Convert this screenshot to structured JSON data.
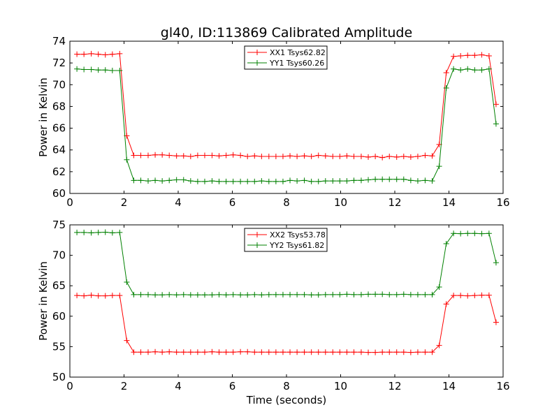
{
  "figure_title": "gl40, ID:113869 Calibrated Amplitude",
  "x_label": "Time (seconds)",
  "colors": {
    "red": "#ff0000",
    "green": "#008000",
    "axes": "#000000"
  },
  "chart_data": [
    {
      "type": "line",
      "title": "gl40, ID:113869 Calibrated Amplitude",
      "xlabel": "",
      "ylabel": "Power in Kelvin",
      "xlim": [
        0,
        16
      ],
      "ylim": [
        60,
        74
      ],
      "xticks": [
        0,
        2,
        4,
        6,
        8,
        10,
        12,
        14,
        16
      ],
      "yticks": [
        60,
        62,
        64,
        66,
        68,
        70,
        72,
        74
      ],
      "grid": false,
      "legend": "top-center",
      "x": [
        0.26,
        0.52,
        0.79,
        1.05,
        1.31,
        1.57,
        1.84,
        2.1,
        2.36,
        2.62,
        2.89,
        3.15,
        3.41,
        3.67,
        3.94,
        4.2,
        4.46,
        4.72,
        4.98,
        5.25,
        5.51,
        5.77,
        6.03,
        6.3,
        6.56,
        6.82,
        7.08,
        7.35,
        7.61,
        7.87,
        8.13,
        8.39,
        8.66,
        8.92,
        9.18,
        9.44,
        9.71,
        9.97,
        10.23,
        10.49,
        10.76,
        11.02,
        11.28,
        11.54,
        11.8,
        12.07,
        12.33,
        12.59,
        12.85,
        13.12,
        13.38,
        13.64,
        13.9,
        14.17,
        14.43,
        14.69,
        14.95,
        15.21,
        15.48,
        15.74
      ],
      "series": [
        {
          "name": "XX1 Tsys62.82",
          "color": "#ff0000",
          "values": [
            72.8,
            72.8,
            72.85,
            72.8,
            72.75,
            72.8,
            72.85,
            65.3,
            63.5,
            63.5,
            63.5,
            63.55,
            63.55,
            63.5,
            63.45,
            63.45,
            63.4,
            63.5,
            63.5,
            63.5,
            63.45,
            63.5,
            63.55,
            63.5,
            63.4,
            63.45,
            63.4,
            63.4,
            63.4,
            63.4,
            63.45,
            63.4,
            63.45,
            63.4,
            63.5,
            63.45,
            63.4,
            63.4,
            63.45,
            63.4,
            63.4,
            63.35,
            63.4,
            63.3,
            63.4,
            63.35,
            63.4,
            63.35,
            63.4,
            63.5,
            63.45,
            64.5,
            71.1,
            72.6,
            72.65,
            72.7,
            72.7,
            72.75,
            72.65,
            68.2
          ]
        },
        {
          "name": "YY1 Tsys60.26",
          "color": "#008000",
          "values": [
            71.45,
            71.4,
            71.4,
            71.35,
            71.35,
            71.3,
            71.3,
            63.1,
            61.2,
            61.2,
            61.15,
            61.2,
            61.15,
            61.2,
            61.25,
            61.25,
            61.15,
            61.1,
            61.1,
            61.15,
            61.1,
            61.1,
            61.1,
            61.1,
            61.1,
            61.1,
            61.15,
            61.1,
            61.1,
            61.1,
            61.2,
            61.15,
            61.2,
            61.1,
            61.1,
            61.15,
            61.15,
            61.15,
            61.15,
            61.2,
            61.2,
            61.25,
            61.3,
            61.3,
            61.3,
            61.3,
            61.3,
            61.2,
            61.15,
            61.2,
            61.15,
            62.5,
            69.7,
            71.45,
            71.35,
            71.45,
            71.35,
            71.35,
            71.45,
            66.4
          ]
        }
      ]
    },
    {
      "type": "line",
      "title": "",
      "xlabel": "Time (seconds)",
      "ylabel": "Power in Kelvin",
      "xlim": [
        0,
        16
      ],
      "ylim": [
        50,
        75
      ],
      "xticks": [
        0,
        2,
        4,
        6,
        8,
        10,
        12,
        14,
        16
      ],
      "yticks": [
        50,
        55,
        60,
        65,
        70,
        75
      ],
      "grid": false,
      "legend": "top-center",
      "x": [
        0.26,
        0.52,
        0.79,
        1.05,
        1.31,
        1.57,
        1.84,
        2.1,
        2.36,
        2.62,
        2.89,
        3.15,
        3.41,
        3.67,
        3.94,
        4.2,
        4.46,
        4.72,
        4.98,
        5.25,
        5.51,
        5.77,
        6.03,
        6.3,
        6.56,
        6.82,
        7.08,
        7.35,
        7.61,
        7.87,
        8.13,
        8.39,
        8.66,
        8.92,
        9.18,
        9.44,
        9.71,
        9.97,
        10.23,
        10.49,
        10.76,
        11.02,
        11.28,
        11.54,
        11.8,
        12.07,
        12.33,
        12.59,
        12.85,
        13.12,
        13.38,
        13.64,
        13.9,
        14.17,
        14.43,
        14.69,
        14.95,
        15.21,
        15.48,
        15.74
      ],
      "series": [
        {
          "name": "XX2 Tsys53.78",
          "color": "#ff0000",
          "values": [
            63.4,
            63.35,
            63.45,
            63.35,
            63.35,
            63.4,
            63.4,
            56.0,
            54.1,
            54.1,
            54.1,
            54.15,
            54.1,
            54.15,
            54.1,
            54.1,
            54.1,
            54.1,
            54.1,
            54.15,
            54.1,
            54.1,
            54.1,
            54.15,
            54.15,
            54.1,
            54.1,
            54.1,
            54.1,
            54.1,
            54.1,
            54.1,
            54.1,
            54.1,
            54.1,
            54.1,
            54.1,
            54.1,
            54.1,
            54.1,
            54.1,
            54.05,
            54.05,
            54.1,
            54.1,
            54.1,
            54.1,
            54.05,
            54.1,
            54.1,
            54.1,
            55.2,
            62.0,
            63.4,
            63.4,
            63.35,
            63.4,
            63.45,
            63.45,
            59.0
          ]
        },
        {
          "name": "YY2 Tsys61.82",
          "color": "#008000",
          "values": [
            73.75,
            73.75,
            73.7,
            73.75,
            73.8,
            73.7,
            73.75,
            65.6,
            63.55,
            63.55,
            63.55,
            63.5,
            63.5,
            63.55,
            63.5,
            63.55,
            63.5,
            63.5,
            63.5,
            63.5,
            63.55,
            63.5,
            63.55,
            63.5,
            63.5,
            63.55,
            63.5,
            63.55,
            63.55,
            63.55,
            63.55,
            63.55,
            63.55,
            63.5,
            63.5,
            63.55,
            63.55,
            63.55,
            63.6,
            63.55,
            63.55,
            63.6,
            63.6,
            63.6,
            63.55,
            63.55,
            63.6,
            63.55,
            63.55,
            63.55,
            63.55,
            64.8,
            71.9,
            73.6,
            73.55,
            73.6,
            73.6,
            73.55,
            73.6,
            68.8
          ]
        }
      ]
    }
  ]
}
